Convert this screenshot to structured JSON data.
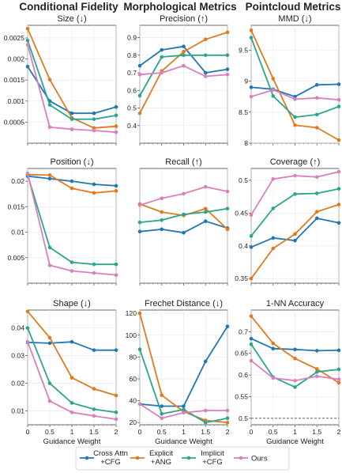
{
  "columns": [
    "Conditional Fidelity",
    "Morphological Metrics",
    "Pointcloud Metrics"
  ],
  "colors": {
    "cross_attn": "#1f77b4",
    "explicit": "#e07a1f",
    "implicit": "#2ca58d",
    "ours": "#d97fbf"
  },
  "legend": [
    {
      "key": "cross_attn",
      "lines": [
        "Cross Attn",
        "+CFG"
      ]
    },
    {
      "key": "explicit",
      "lines": [
        "Explicit",
        "+ANG"
      ]
    },
    {
      "key": "implicit",
      "lines": [
        "Implicit",
        "+CFG"
      ]
    },
    {
      "key": "ours",
      "lines": [
        "Ours"
      ]
    }
  ],
  "chart_data": [
    {
      "id": "size",
      "type": "line",
      "title": "Size (↓)",
      "xlabel": "",
      "ylabel": "",
      "x": [
        0,
        0.5,
        1,
        1.5,
        2
      ],
      "xlim": [
        0,
        2
      ],
      "ylim": [
        0,
        0.0028
      ],
      "yticks": [
        "0.0005",
        "0.001",
        "0.0015",
        "0.002",
        "0.0025"
      ],
      "ytick_values": [
        0.0005,
        0.001,
        0.0015,
        0.002,
        0.0025
      ],
      "series": [
        {
          "key": "cross_attn",
          "values": [
            0.00182,
            0.001,
            0.00071,
            0.00071,
            0.00086
          ]
        },
        {
          "key": "explicit",
          "values": [
            0.00272,
            0.00151,
            0.0006,
            0.00036,
            0.0004
          ]
        },
        {
          "key": "implicit",
          "values": [
            0.00244,
            0.00091,
            0.00057,
            0.00057,
            0.00066
          ]
        },
        {
          "key": "ours",
          "values": [
            0.00234,
            0.00038,
            0.00033,
            0.0003,
            0.00026
          ]
        }
      ]
    },
    {
      "id": "precision",
      "type": "line",
      "title": "Precision (↑)",
      "xlabel": "",
      "ylabel": "",
      "x": [
        0,
        0.5,
        1,
        1.5,
        2
      ],
      "xlim": [
        0,
        2
      ],
      "ylim": [
        0.3,
        0.97
      ],
      "yticks": [
        "0.4",
        "0.5",
        "0.6",
        "0.7",
        "0.8",
        "0.9"
      ],
      "ytick_values": [
        0.4,
        0.5,
        0.6,
        0.7,
        0.8,
        0.9
      ],
      "series": [
        {
          "key": "cross_attn",
          "values": [
            0.74,
            0.83,
            0.85,
            0.7,
            0.72
          ]
        },
        {
          "key": "explicit",
          "values": [
            0.47,
            0.71,
            0.82,
            0.89,
            0.93
          ]
        },
        {
          "key": "implicit",
          "values": [
            0.57,
            0.79,
            0.8,
            0.8,
            0.8
          ]
        },
        {
          "key": "ours",
          "values": [
            0.69,
            0.7,
            0.74,
            0.68,
            0.69
          ]
        }
      ]
    },
    {
      "id": "mmd",
      "type": "line",
      "title": "MMD (↓)",
      "xlabel": "",
      "ylabel": "",
      "x": [
        0,
        0.5,
        1,
        1.5,
        2
      ],
      "xlim": [
        0,
        2
      ],
      "ylim": [
        8,
        9.9
      ],
      "yticks": [
        "8",
        "8.5",
        "9",
        "9.5"
      ],
      "ytick_values": [
        8,
        8.5,
        9,
        9.5
      ],
      "series": [
        {
          "key": "cross_attn",
          "values": [
            8.9,
            8.87,
            8.75,
            8.94,
            8.95
          ]
        },
        {
          "key": "explicit",
          "values": [
            9.82,
            9.04,
            8.29,
            8.25,
            8.05
          ]
        },
        {
          "key": "implicit",
          "values": [
            9.7,
            8.76,
            8.42,
            8.46,
            8.59
          ]
        },
        {
          "key": "ours",
          "values": [
            8.75,
            8.86,
            8.71,
            8.73,
            8.7
          ]
        }
      ]
    },
    {
      "id": "position",
      "type": "line",
      "title": "Position (↓)",
      "xlabel": "",
      "ylabel": "",
      "x": [
        0,
        0.5,
        1,
        1.5,
        2
      ],
      "xlim": [
        0,
        2
      ],
      "ylim": [
        0,
        0.0225
      ],
      "yticks": [
        "0.005",
        "0.01",
        "0.015",
        "0.02"
      ],
      "ytick_values": [
        0.005,
        0.01,
        0.015,
        0.02
      ],
      "series": [
        {
          "key": "cross_attn",
          "values": [
            0.021,
            0.0205,
            0.02,
            0.0194,
            0.0191
          ]
        },
        {
          "key": "explicit",
          "values": [
            0.0213,
            0.0212,
            0.0186,
            0.0177,
            0.0181
          ]
        },
        {
          "key": "implicit",
          "values": [
            0.0212,
            0.007,
            0.0041,
            0.0037,
            0.0037
          ]
        },
        {
          "key": "ours",
          "values": [
            0.0215,
            0.0035,
            0.0024,
            0.002,
            0.0016
          ]
        }
      ]
    },
    {
      "id": "recall",
      "type": "line",
      "title": "Recall (↑)",
      "xlabel": "",
      "ylabel": "",
      "x": [
        0,
        0.5,
        1,
        1.5,
        2
      ],
      "xlim": [
        0,
        2
      ],
      "ylim": [
        0.0,
        1.0
      ],
      "yticks": [],
      "ytick_values": [],
      "series": [
        {
          "key": "cross_attn",
          "values": [
            0.45,
            0.47,
            0.44,
            0.54,
            0.48
          ]
        },
        {
          "key": "explicit",
          "values": [
            0.69,
            0.62,
            0.59,
            0.65,
            0.47
          ]
        },
        {
          "key": "implicit",
          "values": [
            0.53,
            0.55,
            0.6,
            0.62,
            0.65
          ]
        },
        {
          "key": "ours",
          "values": [
            0.68,
            0.74,
            0.78,
            0.84,
            0.8
          ]
        }
      ]
    },
    {
      "id": "coverage",
      "type": "line",
      "title": "Coverage (↑)",
      "xlabel": "",
      "ylabel": "",
      "x": [
        0,
        0.5,
        1,
        1.5,
        2
      ],
      "xlim": [
        0,
        2
      ],
      "ylim": [
        0.343,
        0.518
      ],
      "yticks": [
        "0.35",
        "0.4",
        "0.45",
        "0.5"
      ],
      "ytick_values": [
        0.35,
        0.4,
        0.45,
        0.5
      ],
      "series": [
        {
          "key": "cross_attn",
          "values": [
            0.398,
            0.412,
            0.408,
            0.442,
            0.435
          ]
        },
        {
          "key": "explicit",
          "values": [
            0.35,
            0.396,
            0.418,
            0.452,
            0.463
          ]
        },
        {
          "key": "implicit",
          "values": [
            0.415,
            0.457,
            0.479,
            0.48,
            0.487
          ]
        },
        {
          "key": "ours",
          "values": [
            0.447,
            0.502,
            0.507,
            0.505,
            0.513
          ]
        }
      ]
    },
    {
      "id": "shape",
      "type": "line",
      "title": "Shape (↓)",
      "xlabel": "Guidance Weight",
      "ylabel": "",
      "x": [
        0,
        0.5,
        1,
        1.5,
        2
      ],
      "xlim": [
        0,
        2
      ],
      "ylim": [
        0.005,
        0.0465
      ],
      "yticks": [
        "0.01",
        "0.02",
        "0.03",
        "0.04"
      ],
      "ytick_values": [
        0.01,
        0.02,
        0.03,
        0.04
      ],
      "series": [
        {
          "key": "cross_attn",
          "values": [
            0.0348,
            0.0345,
            0.035,
            0.032,
            0.032
          ]
        },
        {
          "key": "explicit",
          "values": [
            0.046,
            0.0365,
            0.022,
            0.018,
            0.0156
          ]
        },
        {
          "key": "implicit",
          "values": [
            0.04,
            0.02,
            0.0129,
            0.0106,
            0.0095
          ]
        },
        {
          "key": "ours",
          "values": [
            0.035,
            0.0136,
            0.0095,
            0.0082,
            0.007
          ]
        }
      ]
    },
    {
      "id": "frechet",
      "type": "line",
      "title": "Frechet Distance (↓)",
      "xlabel": "Guidance Weight",
      "ylabel": "",
      "x": [
        0,
        0.5,
        1,
        1.5,
        2
      ],
      "xlim": [
        0,
        2
      ],
      "ylim": [
        18,
        123
      ],
      "yticks": [
        "20",
        "40",
        "60",
        "80",
        "100",
        "120"
      ],
      "ytick_values": [
        20,
        40,
        60,
        80,
        100,
        120
      ],
      "series": [
        {
          "key": "cross_attn",
          "values": [
            37,
            35,
            35,
            76,
            108
          ]
        },
        {
          "key": "explicit",
          "values": [
            120,
            45,
            30,
            22,
            20
          ]
        },
        {
          "key": "implicit",
          "values": [
            87,
            28,
            32,
            20,
            24
          ]
        },
        {
          "key": "ours",
          "values": [
            37,
            24,
            29,
            31,
            31
          ]
        }
      ]
    },
    {
      "id": "nna",
      "type": "line",
      "title": "1-NN Accuracy",
      "xlabel": "Guidance Weight",
      "ylabel": "",
      "x": [
        0,
        0.5,
        1,
        1.5,
        2
      ],
      "xlim": [
        0,
        2
      ],
      "ylim": [
        0.485,
        0.75
      ],
      "yticks": [
        "0.5",
        "0.55",
        "0.6",
        "0.65",
        "0.7"
      ],
      "ytick_values": [
        0.5,
        0.55,
        0.6,
        0.65,
        0.7
      ],
      "reference_line": 0.5,
      "series": [
        {
          "key": "cross_attn",
          "values": [
            0.684,
            0.661,
            0.659,
            0.656,
            0.657
          ]
        },
        {
          "key": "explicit",
          "values": [
            0.736,
            0.673,
            0.638,
            0.614,
            0.582
          ]
        },
        {
          "key": "implicit",
          "values": [
            0.671,
            0.595,
            0.572,
            0.607,
            0.613
          ]
        },
        {
          "key": "ours",
          "values": [
            0.633,
            0.593,
            0.587,
            0.597,
            0.59
          ]
        }
      ]
    }
  ],
  "xticks": [
    "0",
    "0.5",
    "1",
    "1.5",
    "2"
  ]
}
